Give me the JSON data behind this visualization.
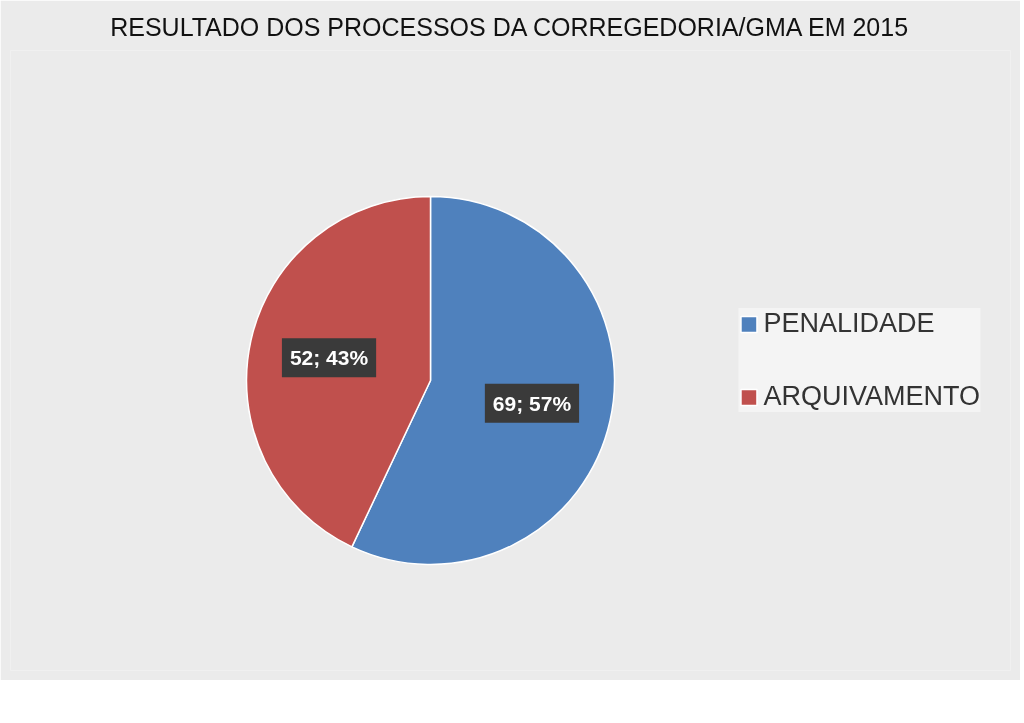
{
  "chart_data": {
    "type": "pie",
    "title": "RESULTADO DOS PROCESSOS DA CORREGEDORIA/GMA EM 2015",
    "categories": [
      "PENALIDADE",
      "ARQUIVAMENTO"
    ],
    "values": [
      69,
      52
    ],
    "colors": [
      "#4f81bd",
      "#c0504d"
    ],
    "value_labels": [
      "69; 57%",
      "52; 43%"
    ],
    "legend": "right"
  }
}
